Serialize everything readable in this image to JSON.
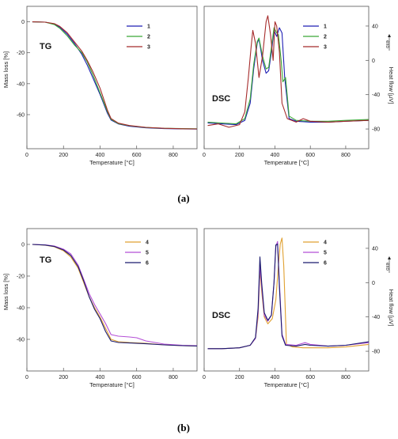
{
  "captions": [
    "(a)",
    "(b)"
  ],
  "chart_data": [
    {
      "type": "line",
      "panel_label": "TG",
      "xlabel": "Temperature [°C]",
      "ylabel": "Mass loss [%]",
      "xlim": [
        0,
        930
      ],
      "ylim": [
        -82,
        10
      ],
      "xticks": [
        0,
        200,
        400,
        600,
        800
      ],
      "yticks": [
        0,
        -20,
        -40,
        -60
      ],
      "legend_position": "top-right",
      "series": [
        {
          "name": "1",
          "color": "#1f1fb4",
          "x": [
            30,
            100,
            150,
            180,
            220,
            260,
            300,
            330,
            360,
            400,
            440,
            460,
            500,
            560,
            650,
            750,
            850,
            930
          ],
          "y": [
            0,
            -0.2,
            -1.5,
            -3.5,
            -8,
            -14,
            -21,
            -28,
            -36,
            -47,
            -59,
            -63.5,
            -66,
            -67.5,
            -68.5,
            -69,
            -69.2,
            -69.3
          ]
        },
        {
          "name": "2",
          "color": "#3aa836",
          "x": [
            30,
            100,
            150,
            180,
            220,
            260,
            300,
            330,
            360,
            400,
            440,
            460,
            500,
            560,
            650,
            750,
            850,
            930
          ],
          "y": [
            0,
            -0.2,
            -1.8,
            -4.2,
            -9,
            -15,
            -20,
            -26,
            -34,
            -46,
            -58,
            -63,
            -65.8,
            -67.2,
            -68.3,
            -68.8,
            -69,
            -69.1
          ]
        },
        {
          "name": "3",
          "color": "#a52a2a",
          "x": [
            30,
            100,
            150,
            180,
            220,
            260,
            300,
            330,
            360,
            400,
            440,
            460,
            500,
            560,
            650,
            750,
            850,
            930
          ],
          "y": [
            0,
            -0.2,
            -1.2,
            -3,
            -7,
            -13,
            -19,
            -25,
            -32,
            -43,
            -57,
            -62.5,
            -65.5,
            -67,
            -68.2,
            -68.8,
            -69.1,
            -69.2
          ]
        }
      ]
    },
    {
      "type": "line",
      "panel_label": "DSC",
      "xlabel": "Temperature [°C]",
      "ylabel": "Heat flow [µV]",
      "exo_label": "exo",
      "xlim": [
        0,
        930
      ],
      "ylim": [
        -103,
        63
      ],
      "xticks": [
        0,
        200,
        400,
        600,
        800
      ],
      "yticks": [
        40,
        0,
        -40,
        -80
      ],
      "legend_position": "top-right",
      "series": [
        {
          "name": "1",
          "color": "#1f1fb4",
          "x": [
            20,
            100,
            180,
            230,
            260,
            280,
            300,
            310,
            330,
            350,
            365,
            380,
            395,
            410,
            425,
            440,
            455,
            480,
            520,
            600,
            700,
            800,
            930
          ],
          "y": [
            -73,
            -74,
            -75,
            -70,
            -50,
            -10,
            20,
            25,
            0,
            -15,
            -12,
            10,
            35,
            28,
            38,
            32,
            -20,
            -68,
            -71,
            -72,
            -72,
            -71,
            -70
          ]
        },
        {
          "name": "2",
          "color": "#3aa836",
          "x": [
            20,
            100,
            180,
            230,
            260,
            280,
            300,
            310,
            330,
            350,
            365,
            380,
            395,
            410,
            420,
            435,
            445,
            460,
            480,
            520,
            600,
            700,
            800,
            930
          ],
          "y": [
            -72,
            -73,
            -74,
            -68,
            -45,
            -5,
            22,
            26,
            5,
            -10,
            -8,
            15,
            38,
            32,
            30,
            0,
            -25,
            -20,
            -65,
            -70,
            -71,
            -71,
            -70,
            -69
          ]
        },
        {
          "name": "3",
          "color": "#a52a2a",
          "x": [
            20,
            80,
            140,
            200,
            230,
            250,
            265,
            275,
            290,
            310,
            330,
            350,
            360,
            375,
            390,
            400,
            410,
            425,
            440,
            470,
            520,
            560,
            600,
            700,
            800,
            930
          ],
          "y": [
            -76,
            -74,
            -78,
            -75,
            -60,
            -20,
            15,
            35,
            20,
            -20,
            5,
            45,
            52,
            30,
            0,
            45,
            40,
            10,
            -50,
            -68,
            -72,
            -68,
            -71,
            -72,
            -71,
            -70
          ]
        }
      ]
    },
    {
      "type": "line",
      "panel_label": "TG",
      "xlabel": "Temperature [°C]",
      "ylabel": "Mass loss [%]",
      "xlim": [
        0,
        930
      ],
      "ylim": [
        -80,
        10
      ],
      "xticks": [
        0,
        200,
        400,
        600,
        800
      ],
      "yticks": [
        0,
        -20,
        -40,
        -60
      ],
      "legend_position": "top-right",
      "series": [
        {
          "name": "4",
          "color": "#e0a030",
          "x": [
            30,
            100,
            150,
            200,
            240,
            280,
            310,
            340,
            370,
            400,
            430,
            460,
            500,
            560,
            650,
            750,
            850,
            930
          ],
          "y": [
            0,
            -0.5,
            -1.5,
            -4,
            -8,
            -15,
            -24,
            -33,
            -40,
            -46,
            -53,
            -60,
            -61.5,
            -62,
            -62.5,
            -63.5,
            -64,
            -64.2
          ]
        },
        {
          "name": "5",
          "color": "#b44fd6",
          "x": [
            30,
            100,
            150,
            200,
            240,
            280,
            310,
            340,
            370,
            400,
            430,
            460,
            500,
            560,
            600,
            650,
            700,
            750,
            850,
            930
          ],
          "y": [
            0,
            -0.3,
            -1,
            -3,
            -6,
            -13,
            -22,
            -31,
            -38,
            -44,
            -50,
            -57,
            -58,
            -58.5,
            -59,
            -61,
            -62,
            -63,
            -63.8,
            -64
          ]
        },
        {
          "name": "6",
          "color": "#1a1a6e",
          "x": [
            30,
            100,
            150,
            200,
            240,
            280,
            310,
            340,
            370,
            400,
            430,
            460,
            500,
            560,
            650,
            750,
            850,
            930
          ],
          "y": [
            0,
            -0.4,
            -1.3,
            -3.5,
            -7,
            -14,
            -23,
            -33,
            -41,
            -47,
            -55,
            -61,
            -62,
            -62.3,
            -62.8,
            -63.5,
            -64,
            -64.2
          ]
        }
      ]
    },
    {
      "type": "line",
      "panel_label": "DSC",
      "xlabel": "Temperature [°C]",
      "ylabel": "Heat flow [µV]",
      "exo_label": "exo",
      "xlim": [
        0,
        930
      ],
      "ylim": [
        -103,
        63
      ],
      "xticks": [
        0,
        200,
        400,
        600,
        800
      ],
      "yticks": [
        40,
        0,
        -40,
        -80
      ],
      "legend_position": "top-right",
      "series": [
        {
          "name": "4",
          "color": "#e0a030",
          "x": [
            20,
            100,
            200,
            260,
            290,
            305,
            315,
            325,
            340,
            360,
            385,
            405,
            420,
            430,
            440,
            450,
            465,
            500,
            560,
            600,
            700,
            800,
            930
          ],
          "y": [
            -77,
            -77,
            -76,
            -73,
            -65,
            -40,
            15,
            -10,
            -40,
            -48,
            -42,
            -20,
            20,
            45,
            52,
            20,
            -72,
            -75,
            -76,
            -76,
            -76,
            -75,
            -72
          ]
        },
        {
          "name": "5",
          "color": "#b44fd6",
          "x": [
            20,
            100,
            200,
            260,
            290,
            305,
            315,
            325,
            340,
            360,
            380,
            395,
            405,
            415,
            425,
            440,
            460,
            520,
            570,
            600,
            700,
            800,
            930
          ],
          "y": [
            -77,
            -77,
            -76,
            -73,
            -65,
            -35,
            20,
            -5,
            -38,
            -45,
            -38,
            0,
            42,
            48,
            0,
            -60,
            -72,
            -73,
            -70,
            -72,
            -74,
            -73,
            -70
          ]
        },
        {
          "name": "6",
          "color": "#1a1a6e",
          "x": [
            20,
            100,
            200,
            260,
            290,
            305,
            315,
            325,
            340,
            360,
            380,
            395,
            405,
            415,
            425,
            440,
            460,
            520,
            570,
            600,
            700,
            800,
            930
          ],
          "y": [
            -77,
            -77,
            -76,
            -73,
            -64,
            -30,
            30,
            0,
            -35,
            -44,
            -38,
            0,
            44,
            45,
            -5,
            -62,
            -73,
            -74,
            -72,
            -73,
            -74,
            -73,
            -69
          ]
        }
      ]
    }
  ]
}
